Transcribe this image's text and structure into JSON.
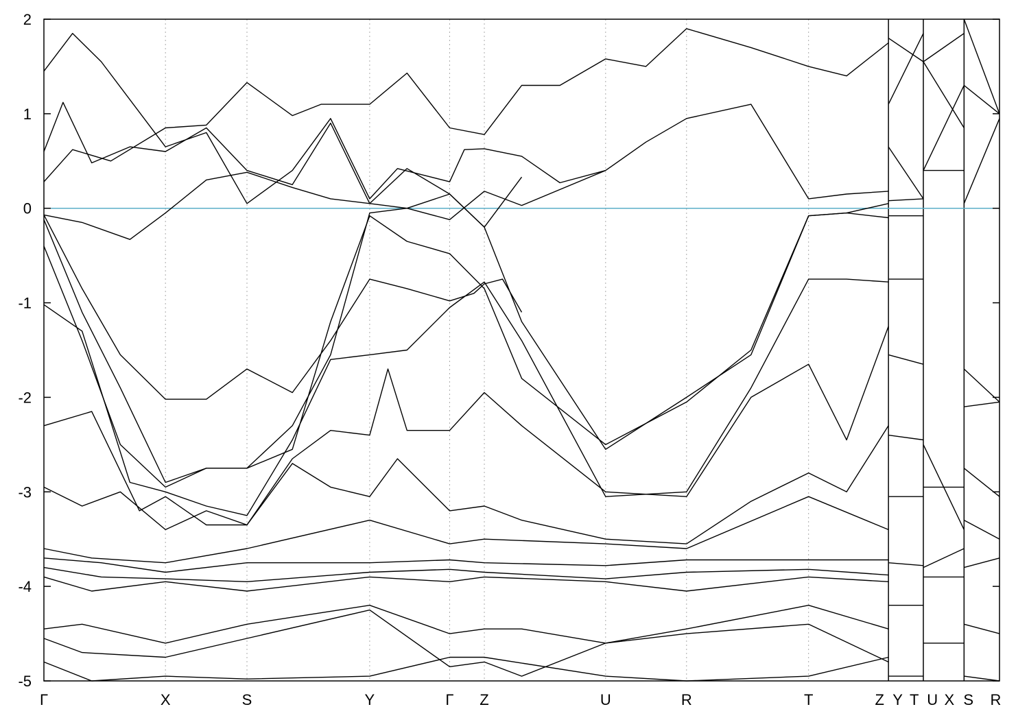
{
  "chart_data": {
    "type": "line",
    "title": "",
    "xlabel": "",
    "ylabel": "",
    "ylim": [
      -5,
      2
    ],
    "yticks": [
      -5,
      -4,
      -3,
      -2,
      -1,
      0,
      1,
      2
    ],
    "ytick_labels": [
      "-5",
      "-4",
      "-3",
      "-2",
      "-1",
      "0",
      "1",
      "2"
    ],
    "xlim": [
      0,
      1.0
    ],
    "grid": "vertical dotted lines at k-points",
    "fermi_level": {
      "value": 0,
      "color": "#5aaec7"
    },
    "line_color": "#000000",
    "axis_color": "#000000",
    "grid_color": "#aaaaaa",
    "kpoints": [
      {
        "label": "Γ",
        "x": 0.0
      },
      {
        "label": "X",
        "x": 0.1272
      },
      {
        "label": "S",
        "x": 0.2125
      },
      {
        "label": "Y",
        "x": 0.3409
      },
      {
        "label": "Γ",
        "x": 0.4246
      },
      {
        "label": "Z",
        "x": 0.4609
      },
      {
        "label": "U",
        "x": 0.5878
      },
      {
        "label": "R",
        "x": 0.6725
      },
      {
        "label": "T",
        "x": 0.8002
      },
      {
        "label": "Z",
        "x": 0.8838
      },
      {
        "label": "Y",
        "x": 0.8838
      },
      {
        "label": "T",
        "x": 0.9203
      },
      {
        "label": "U",
        "x": 0.9203
      },
      {
        "label": "X",
        "x": 0.9629
      },
      {
        "label": "S",
        "x": 0.9629
      },
      {
        "label": "R",
        "x": 1.0
      }
    ],
    "segment_breaks": [
      0.8838,
      0.9203,
      0.9629
    ],
    "x_label_positions": [
      {
        "label": "Γ",
        "x": 0.0
      },
      {
        "label": "X",
        "x": 0.1272
      },
      {
        "label": "S",
        "x": 0.2125
      },
      {
        "label": "Y",
        "x": 0.3409
      },
      {
        "label": "Γ",
        "x": 0.4246
      },
      {
        "label": "Z",
        "x": 0.4609
      },
      {
        "label": "U",
        "x": 0.5878
      },
      {
        "label": "R",
        "x": 0.6725
      },
      {
        "label": "T",
        "x": 0.8002
      },
      {
        "label": "Z",
        "x": 0.8745
      },
      {
        "label": "Y",
        "x": 0.8935
      },
      {
        "label": "T",
        "x": 0.9108
      },
      {
        "label": "U",
        "x": 0.9298
      },
      {
        "label": "X",
        "x": 0.9475
      },
      {
        "label": "S",
        "x": 0.9675
      },
      {
        "label": "R",
        "x": 0.996
      }
    ],
    "series": [
      {
        "x": [
          0.0,
          0.04,
          0.09,
          0.1272,
          0.17,
          0.2125,
          0.26,
          0.3,
          0.3409,
          0.38,
          0.4246,
          0.4609,
          0.5,
          0.5878,
          0.63,
          0.6725,
          0.74,
          0.8002,
          0.84,
          0.8838
        ],
        "y": [
          -0.07,
          -0.15,
          -0.33,
          -0.05,
          0.3,
          0.38,
          0.22,
          0.1,
          0.05,
          0.0,
          -0.12,
          0.18,
          0.03,
          0.4,
          0.7,
          0.95,
          1.1,
          0.1,
          0.15,
          0.18
        ]
      },
      {
        "x": [
          0.0,
          0.03,
          0.07,
          0.1272,
          0.17,
          0.2125,
          0.26,
          0.29,
          0.3409,
          0.38,
          0.4246,
          0.4609,
          0.5,
          0.54,
          0.5878,
          0.63,
          0.6725,
          0.74,
          0.8002,
          0.84,
          0.8838
        ],
        "y": [
          0.28,
          0.62,
          0.5,
          0.85,
          0.88,
          1.33,
          0.98,
          1.1,
          1.1,
          1.43,
          0.85,
          0.78,
          1.3,
          1.3,
          1.58,
          1.5,
          1.9,
          1.7,
          1.5,
          1.4,
          1.75
        ]
      },
      {
        "x": [
          0.0,
          0.03,
          0.06,
          0.1272,
          0.17,
          0.2125,
          0.26,
          0.3,
          0.3409,
          0.37,
          0.4246,
          0.44,
          0.4609,
          0.5,
          0.54,
          0.5878
        ],
        "y": [
          1.45,
          1.85,
          1.55,
          0.65,
          0.8,
          0.05,
          0.4,
          0.95,
          0.1,
          0.42,
          0.28,
          0.62,
          0.63,
          0.55,
          0.27,
          0.4
        ]
      },
      {
        "x": [
          0.0,
          0.02,
          0.05,
          0.09,
          0.1272,
          0.17,
          0.2125,
          0.26,
          0.3,
          0.3409,
          0.38,
          0.4246,
          0.4609,
          0.5
        ],
        "y": [
          0.6,
          1.12,
          0.48,
          0.65,
          0.6,
          0.85,
          0.4,
          0.25,
          0.9,
          0.05,
          0.42,
          0.15,
          -0.2,
          0.33
        ]
      },
      {
        "x": [
          0.0,
          0.04,
          0.08,
          0.1272,
          0.17,
          0.2125,
          0.26,
          0.3,
          0.3409,
          0.38,
          0.4246,
          0.45,
          0.4609,
          0.48,
          0.5
        ],
        "y": [
          -0.07,
          -0.85,
          -1.55,
          -2.02,
          -2.02,
          -1.7,
          -1.95,
          -1.4,
          -0.75,
          -0.85,
          -0.98,
          -0.9,
          -0.8,
          -0.75,
          -1.1
        ]
      },
      {
        "x": [
          0.0,
          0.04,
          0.08,
          0.1272,
          0.17,
          0.2125,
          0.26,
          0.3,
          0.3409,
          0.38,
          0.4246,
          0.4609,
          0.5,
          0.5878,
          0.6725,
          0.74,
          0.8002,
          0.84,
          0.8838
        ],
        "y": [
          -0.12,
          -1.1,
          -1.9,
          -2.9,
          -2.75,
          -2.75,
          -2.55,
          -1.2,
          -0.08,
          -0.35,
          -0.48,
          -0.85,
          -1.8,
          -2.5,
          -2.05,
          -1.5,
          -0.08,
          -0.05,
          0.05
        ]
      },
      {
        "x": [
          0.0,
          0.04,
          0.08,
          0.1272,
          0.17,
          0.2125,
          0.26,
          0.3,
          0.3409,
          0.38,
          0.4246,
          0.4609,
          0.5,
          0.5878,
          0.6725,
          0.74,
          0.8002,
          0.84,
          0.8838
        ],
        "y": [
          -0.4,
          -1.4,
          -2.5,
          -2.95,
          -2.75,
          -2.75,
          -2.3,
          -1.55,
          -0.05,
          0.0,
          0.15,
          -0.2,
          -1.2,
          -2.55,
          -2.0,
          -1.55,
          -0.08,
          -0.05,
          -0.1
        ]
      },
      {
        "x": [
          0.0,
          0.04,
          0.09,
          0.1272,
          0.17,
          0.2125,
          0.26,
          0.3,
          0.3409,
          0.38,
          0.4246,
          0.4609,
          0.5,
          0.5878,
          0.6725,
          0.74,
          0.8002,
          0.84,
          0.8838
        ],
        "y": [
          -1.02,
          -1.3,
          -2.9,
          -3.0,
          -3.15,
          -3.25,
          -2.45,
          -1.6,
          -1.55,
          -1.5,
          -1.05,
          -0.78,
          -1.4,
          -3.05,
          -3.0,
          -1.9,
          -0.75,
          -0.75,
          -0.78
        ]
      },
      {
        "x": [
          0.0,
          0.05,
          0.1,
          0.1272,
          0.17,
          0.2125,
          0.26,
          0.3,
          0.3409,
          0.36,
          0.38,
          0.4246,
          0.4609,
          0.5,
          0.5878,
          0.6725,
          0.74,
          0.8002,
          0.84,
          0.8838
        ],
        "y": [
          -2.3,
          -2.15,
          -3.2,
          -3.05,
          -3.35,
          -3.35,
          -2.65,
          -2.35,
          -2.4,
          -1.7,
          -2.35,
          -2.35,
          -1.95,
          -2.3,
          -3.0,
          -3.05,
          -2.0,
          -1.65,
          -2.45,
          -1.25
        ]
      },
      {
        "x": [
          0.0,
          0.04,
          0.08,
          0.1272,
          0.17,
          0.2125,
          0.26,
          0.3,
          0.3409,
          0.37,
          0.4246,
          0.4609,
          0.5,
          0.5878,
          0.6725,
          0.74,
          0.8002,
          0.84,
          0.8838
        ],
        "y": [
          -2.95,
          -3.15,
          -3.0,
          -3.4,
          -3.2,
          -3.35,
          -2.7,
          -2.95,
          -3.05,
          -2.65,
          -3.2,
          -3.15,
          -3.3,
          -3.5,
          -3.55,
          -3.1,
          -2.8,
          -3.0,
          -2.3
        ]
      },
      {
        "x": [
          0.0,
          0.05,
          0.1272,
          0.2125,
          0.3409,
          0.4246,
          0.4609,
          0.5878,
          0.6725,
          0.8002,
          0.8838
        ],
        "y": [
          -3.6,
          -3.7,
          -3.75,
          -3.6,
          -3.3,
          -3.55,
          -3.5,
          -3.55,
          -3.6,
          -3.05,
          -3.4
        ]
      },
      {
        "x": [
          0.0,
          0.06,
          0.1272,
          0.2125,
          0.3409,
          0.4246,
          0.4609,
          0.5878,
          0.6725,
          0.8002,
          0.8838
        ],
        "y": [
          -3.7,
          -3.75,
          -3.85,
          -3.75,
          -3.75,
          -3.72,
          -3.75,
          -3.78,
          -3.72,
          -3.72,
          -3.72
        ]
      },
      {
        "x": [
          0.0,
          0.06,
          0.1272,
          0.2125,
          0.3409,
          0.4246,
          0.4609,
          0.5878,
          0.6725,
          0.8002,
          0.8838
        ],
        "y": [
          -3.8,
          -3.9,
          -3.92,
          -3.95,
          -3.85,
          -3.82,
          -3.85,
          -3.92,
          -3.85,
          -3.82,
          -3.88
        ]
      },
      {
        "x": [
          0.0,
          0.05,
          0.1272,
          0.2125,
          0.3409,
          0.4246,
          0.4609,
          0.5878,
          0.6725,
          0.8002,
          0.8838
        ],
        "y": [
          -3.9,
          -4.05,
          -3.95,
          -4.05,
          -3.9,
          -3.95,
          -3.9,
          -3.95,
          -4.05,
          -3.9,
          -3.95
        ]
      },
      {
        "x": [
          0.0,
          0.04,
          0.1272,
          0.2125,
          0.3409,
          0.4246,
          0.4609,
          0.5,
          0.5878,
          0.6725,
          0.8002,
          0.8838
        ],
        "y": [
          -4.45,
          -4.4,
          -4.6,
          -4.4,
          -4.2,
          -4.5,
          -4.45,
          -4.45,
          -4.6,
          -4.45,
          -4.2,
          -4.45
        ]
      },
      {
        "x": [
          0.0,
          0.04,
          0.1272,
          0.2125,
          0.3409,
          0.4246,
          0.4609,
          0.5,
          0.5878,
          0.6725,
          0.8002,
          0.8838
        ],
        "y": [
          -4.55,
          -4.7,
          -4.75,
          -4.55,
          -4.25,
          -4.85,
          -4.8,
          -4.95,
          -4.6,
          -4.5,
          -4.4,
          -4.8
        ]
      },
      {
        "x": [
          0.0,
          0.05,
          0.1272,
          0.2125,
          0.3409,
          0.4246,
          0.4609,
          0.5878,
          0.6725,
          0.8002,
          0.8838
        ],
        "y": [
          -4.8,
          -5.0,
          -4.95,
          -4.98,
          -4.95,
          -4.75,
          -4.75,
          -4.95,
          -5.0,
          -4.95,
          -4.75
        ]
      }
    ],
    "right_segments": [
      {
        "x": [
          0.8838,
          0.9203
        ],
        "y": [
          1.1,
          1.85
        ]
      },
      {
        "x": [
          0.8838,
          0.9203
        ],
        "y": [
          1.8,
          1.55
        ]
      },
      {
        "x": [
          0.8838,
          0.9203
        ],
        "y": [
          0.65,
          0.1
        ]
      },
      {
        "x": [
          0.8838,
          0.9203
        ],
        "y": [
          0.08,
          0.1
        ]
      },
      {
        "x": [
          0.8838,
          0.9203
        ],
        "y": [
          -0.08,
          -0.08
        ]
      },
      {
        "x": [
          0.8838,
          0.9203
        ],
        "y": [
          -0.75,
          -0.75
        ]
      },
      {
        "x": [
          0.8838,
          0.9203
        ],
        "y": [
          -1.55,
          -1.65
        ]
      },
      {
        "x": [
          0.8838,
          0.9203
        ],
        "y": [
          -2.4,
          -2.45
        ]
      },
      {
        "x": [
          0.8838,
          0.9203
        ],
        "y": [
          -3.05,
          -3.05
        ]
      },
      {
        "x": [
          0.8838,
          0.9203
        ],
        "y": [
          -3.75,
          -3.78
        ]
      },
      {
        "x": [
          0.8838,
          0.9203
        ],
        "y": [
          -4.2,
          -4.2
        ]
      },
      {
        "x": [
          0.8838,
          0.9203
        ],
        "y": [
          -4.95,
          -4.95
        ]
      },
      {
        "x": [
          0.9203,
          0.9629
        ],
        "y": [
          1.55,
          1.85
        ]
      },
      {
        "x": [
          0.9203,
          0.9629
        ],
        "y": [
          1.55,
          0.85
        ]
      },
      {
        "x": [
          0.9203,
          0.9629
        ],
        "y": [
          0.4,
          0.4
        ]
      },
      {
        "x": [
          0.9203,
          0.9629
        ],
        "y": [
          0.4,
          1.3
        ]
      },
      {
        "x": [
          0.9203,
          0.9629
        ],
        "y": [
          -2.5,
          -3.4
        ]
      },
      {
        "x": [
          0.9203,
          0.9629
        ],
        "y": [
          -2.95,
          -2.95
        ]
      },
      {
        "x": [
          0.9203,
          0.9629
        ],
        "y": [
          -3.8,
          -3.6
        ]
      },
      {
        "x": [
          0.9203,
          0.9629
        ],
        "y": [
          -3.9,
          -3.9
        ]
      },
      {
        "x": [
          0.9203,
          0.9629
        ],
        "y": [
          -4.6,
          -4.6
        ]
      },
      {
        "x": [
          0.9629,
          1.0
        ],
        "y": [
          2.0,
          1.0
        ]
      },
      {
        "x": [
          0.9629,
          1.0
        ],
        "y": [
          1.3,
          1.0
        ]
      },
      {
        "x": [
          0.9629,
          1.0
        ],
        "y": [
          0.05,
          0.95
        ]
      },
      {
        "x": [
          0.9629,
          1.0
        ],
        "y": [
          -1.7,
          -2.05
        ]
      },
      {
        "x": [
          0.9629,
          1.0
        ],
        "y": [
          -2.1,
          -2.05
        ]
      },
      {
        "x": [
          0.9629,
          1.0
        ],
        "y": [
          -2.75,
          -3.05
        ]
      },
      {
        "x": [
          0.9629,
          1.0
        ],
        "y": [
          -3.3,
          -3.5
        ]
      },
      {
        "x": [
          0.9629,
          1.0
        ],
        "y": [
          -3.8,
          -3.7
        ]
      },
      {
        "x": [
          0.9629,
          1.0
        ],
        "y": [
          -4.4,
          -4.5
        ]
      },
      {
        "x": [
          0.9629,
          1.0
        ],
        "y": [
          -4.95,
          -5.0
        ]
      }
    ]
  }
}
